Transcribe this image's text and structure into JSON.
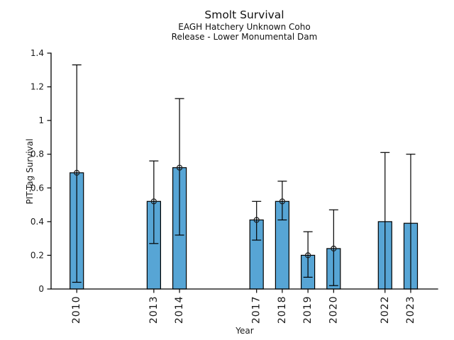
{
  "chart_data": {
    "type": "bar",
    "title": "Smolt Survival",
    "subtitle1": "EAGH Hatchery Unknown Coho",
    "subtitle2": "Release - Lower Monumental Dam",
    "xlabel": "Year",
    "ylabel": "PIT-Tag Survival",
    "categories": [
      "2010",
      "2013",
      "2014",
      "2017",
      "2018",
      "2019",
      "2020",
      "2022",
      "2023"
    ],
    "values": [
      0.69,
      0.52,
      0.72,
      0.41,
      0.52,
      0.2,
      0.24,
      0.4,
      0.39
    ],
    "error_low": [
      0.04,
      0.27,
      0.32,
      0.29,
      0.41,
      0.07,
      0.02,
      0.0,
      0.0
    ],
    "error_high": [
      1.33,
      0.76,
      1.13,
      0.52,
      0.64,
      0.34,
      0.47,
      0.81,
      0.8
    ],
    "has_marker": [
      true,
      true,
      true,
      true,
      true,
      true,
      true,
      false,
      false
    ],
    "ylim": [
      0,
      1.4
    ],
    "ytick_values": [
      0,
      0.2,
      0.4,
      0.6,
      0.8,
      1.0,
      1.2,
      1.4
    ],
    "ytick_labels": [
      "0",
      "0.2",
      "0.4",
      "0.6",
      "0.8",
      "1",
      "1.2",
      "1.4"
    ],
    "xlim_years": [
      2009,
      2024.05
    ],
    "grid": false,
    "legend": "none",
    "marker_style": "open-circle",
    "bar_color": "#57a5d5",
    "bar_edge_color": "#000000",
    "error_color": "#000000",
    "axis_color": "#000000"
  }
}
